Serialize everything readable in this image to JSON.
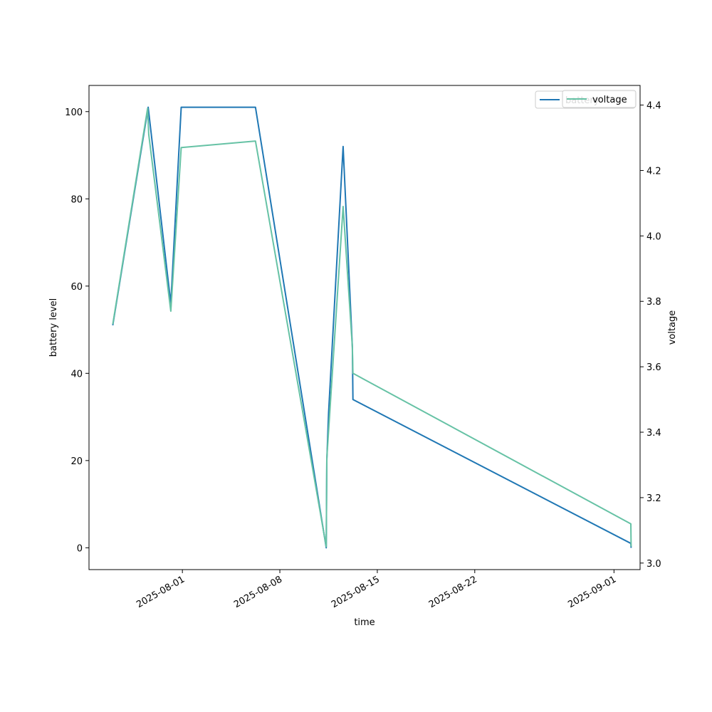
{
  "chart_data": {
    "type": "line",
    "title": "",
    "xlabel": "time",
    "ylabel_left": "battery level",
    "ylabel_right": "voltage",
    "x_tick_labels": [
      "2025-08-01",
      "2025-08-08",
      "2025-08-15",
      "2025-08-22",
      "2025-09-01"
    ],
    "y_left_ticks": [
      "0",
      "20",
      "40",
      "60",
      "80",
      "100"
    ],
    "y_right_ticks": [
      "3.0",
      "3.2",
      "3.4",
      "3.6",
      "3.8",
      "4.0",
      "4.2",
      "4.4"
    ],
    "y_left_range": [
      -5,
      106
    ],
    "y_right_range": [
      2.98,
      4.46
    ],
    "x_range": [
      "2025-07-25T07:00",
      "2025-09-02T21:00"
    ],
    "legend": {
      "placement": "upper-right",
      "overlapping": true
    },
    "series": [
      {
        "name": "battery",
        "axis": "left",
        "color": "#1f77b4",
        "points": [
          [
            "2025-07-27T00:00",
            51
          ],
          [
            "2025-07-29T13:00",
            101
          ],
          [
            "2025-07-31T04:00",
            56
          ],
          [
            "2025-07-31T22:00",
            101
          ],
          [
            "2025-08-06T06:00",
            101
          ],
          [
            "2025-08-11T08:00",
            0
          ],
          [
            "2025-08-11T09:00",
            20
          ],
          [
            "2025-08-11T12:00",
            31
          ],
          [
            "2025-08-12T13:00",
            92
          ],
          [
            "2025-08-13T05:00",
            46
          ],
          [
            "2025-08-13T06:00",
            34
          ],
          [
            "2025-09-02T05:00",
            1
          ],
          [
            "2025-09-02T05:30",
            0
          ]
        ]
      },
      {
        "name": "voltage",
        "axis": "right",
        "color": "#66c2a5",
        "points": [
          [
            "2025-07-27T00:00",
            3.73
          ],
          [
            "2025-07-29T12:00",
            4.39
          ],
          [
            "2025-07-29T14:00",
            4.31
          ],
          [
            "2025-07-31T04:00",
            3.77
          ],
          [
            "2025-07-31T22:00",
            4.27
          ],
          [
            "2025-08-06T06:00",
            4.29
          ],
          [
            "2025-08-11T08:00",
            3.05
          ],
          [
            "2025-08-11T09:00",
            3.32
          ],
          [
            "2025-08-12T13:00",
            4.09
          ],
          [
            "2025-08-13T05:00",
            3.66
          ],
          [
            "2025-08-13T06:00",
            3.58
          ],
          [
            "2025-09-02T05:00",
            3.12
          ],
          [
            "2025-09-02T05:30",
            3.05
          ]
        ]
      }
    ]
  }
}
